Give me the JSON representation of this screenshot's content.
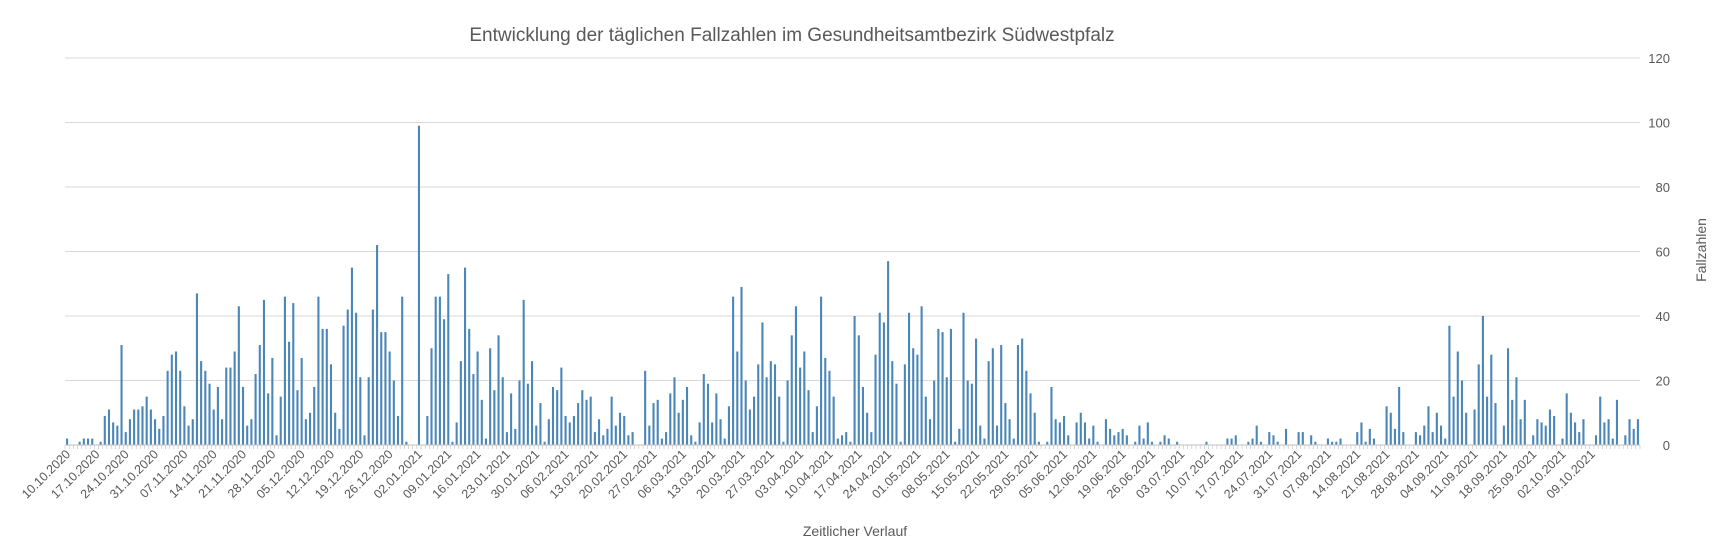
{
  "chart_data": {
    "type": "bar",
    "title": "Entwicklung der täglichen Fallzahlen im Gesundheitsamtbezirk Südwestpfalz",
    "xlabel": "Zeitlicher Verlauf",
    "ylabel": "Fallzahlen",
    "ylim": [
      0,
      120
    ],
    "yticks": [
      0,
      20,
      40,
      60,
      80,
      100,
      120
    ],
    "y_axis_side": "right",
    "grid": true,
    "legend": "none",
    "bar_color": "#4a86b8",
    "start_date": "10.10.2020",
    "x_tick_labels": [
      "10.10.2020",
      "17.10.2020",
      "24.10.2020",
      "31.10.2020",
      "07.11.2020",
      "14.11.2020",
      "21.11.2020",
      "28.11.2020",
      "05.12.2020",
      "12.12.2020",
      "19.12.2020",
      "26.12.2020",
      "02.01.2021",
      "09.01.2021",
      "16.01.2021",
      "23.01.2021",
      "30.01.2021",
      "06.02.2021",
      "13.02.2021",
      "20.02.2021",
      "27.02.2021",
      "06.03.2021",
      "13.03.2021",
      "20.03.2021",
      "27.03.2021",
      "03.04.2021",
      "10.04.2021",
      "17.04.2021",
      "24.04.2021",
      "01.05.2021",
      "08.05.2021",
      "15.05.2021",
      "22.05.2021",
      "29.05.2021",
      "05.06.2021",
      "12.06.2021",
      "19.06.2021",
      "26.06.2021",
      "03.07.2021",
      "10.07.2021",
      "17.07.2021",
      "24.07.2021",
      "31.07.2021",
      "07.08.2021",
      "14.08.2021",
      "21.08.2021",
      "28.08.2021",
      "04.09.2021",
      "11.09.2021",
      "18.09.2021",
      "25.09.2021",
      "02.10.2021",
      "09.10.2021"
    ],
    "values": [
      2,
      0,
      0,
      1,
      2,
      2,
      2,
      0,
      1,
      9,
      11,
      7,
      6,
      31,
      4,
      8,
      11,
      11,
      12,
      15,
      11,
      8,
      5,
      9,
      23,
      28,
      29,
      23,
      12,
      6,
      8,
      47,
      26,
      23,
      19,
      11,
      18,
      8,
      24,
      24,
      29,
      43,
      18,
      6,
      8,
      22,
      31,
      45,
      16,
      27,
      3,
      15,
      46,
      32,
      44,
      17,
      27,
      8,
      10,
      18,
      46,
      36,
      36,
      25,
      10,
      5,
      37,
      42,
      55,
      41,
      21,
      3,
      21,
      42,
      62,
      35,
      35,
      29,
      20,
      9,
      46,
      1,
      0,
      0,
      99,
      0,
      9,
      30,
      46,
      46,
      39,
      53,
      1,
      7,
      26,
      55,
      36,
      22,
      29,
      14,
      2,
      30,
      17,
      34,
      21,
      4,
      16,
      5,
      20,
      45,
      19,
      26,
      6,
      13,
      1,
      8,
      18,
      17,
      24,
      9,
      7,
      9,
      13,
      17,
      14,
      15,
      4,
      8,
      3,
      5,
      15,
      6,
      10,
      9,
      3,
      4,
      0,
      0,
      23,
      6,
      13,
      14,
      2,
      4,
      16,
      21,
      10,
      14,
      18,
      3,
      1,
      7,
      22,
      19,
      7,
      16,
      8,
      2,
      12,
      46,
      29,
      49,
      20,
      11,
      15,
      25,
      38,
      21,
      26,
      25,
      15,
      1,
      20,
      34,
      43,
      24,
      29,
      17,
      4,
      12,
      46,
      27,
      23,
      15,
      2,
      3,
      4,
      1,
      40,
      34,
      18,
      10,
      4,
      28,
      41,
      38,
      57,
      26,
      19,
      1,
      25,
      41,
      30,
      28,
      43,
      15,
      8,
      20,
      36,
      35,
      21,
      36,
      1,
      5,
      41,
      20,
      19,
      33,
      6,
      2,
      26,
      30,
      6,
      31,
      13,
      8,
      2,
      31,
      33,
      23,
      16,
      10,
      1,
      0,
      1,
      18,
      8,
      7,
      9,
      3,
      0,
      7,
      10,
      7,
      2,
      6,
      1,
      0,
      8,
      5,
      3,
      4,
      5,
      3,
      0,
      1,
      6,
      2,
      7,
      1,
      0,
      1,
      3,
      2,
      0,
      1,
      0,
      0,
      0,
      0,
      0,
      0,
      1,
      0,
      0,
      0,
      0,
      2,
      2,
      3,
      0,
      0,
      1,
      2,
      6,
      1,
      0,
      4,
      3,
      1,
      0,
      5,
      0,
      0,
      4,
      4,
      0,
      3,
      1,
      0,
      0,
      2,
      1,
      1,
      2,
      0,
      0,
      0,
      4,
      7,
      1,
      5,
      2,
      0,
      0,
      12,
      10,
      5,
      18,
      4,
      0,
      0,
      4,
      3,
      6,
      12,
      4,
      10,
      6,
      2,
      37,
      15,
      29,
      20,
      10,
      0,
      11,
      25,
      40,
      15,
      28,
      13,
      0,
      6,
      30,
      14,
      21,
      8,
      14,
      0,
      3,
      8,
      7,
      6,
      11,
      9,
      0,
      2,
      16,
      10,
      7,
      4,
      8,
      0,
      0,
      3,
      15,
      7,
      8,
      2,
      14,
      0,
      3,
      8,
      5,
      8
    ]
  }
}
